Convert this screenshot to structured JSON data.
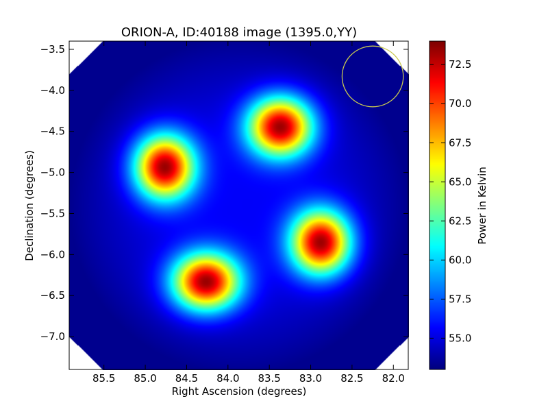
{
  "chart_data": {
    "type": "heatmap",
    "title": "ORION-A, ID:40188 image (1395.0,YY)",
    "xlabel": "Right Ascension (degrees)",
    "ylabel": "Declination (degrees)",
    "xlim": [
      85.92,
      81.82
    ],
    "ylim": [
      -7.4,
      -3.4
    ],
    "x_inverted": true,
    "x_ticks": [
      85.5,
      85.0,
      84.5,
      84.0,
      83.5,
      83.0,
      82.5,
      82.0
    ],
    "x_tick_labels": [
      "85.5",
      "85.0",
      "84.5",
      "84.0",
      "83.5",
      "83.0",
      "82.5",
      "82.0"
    ],
    "y_ticks": [
      -3.5,
      -4.0,
      -4.5,
      -5.0,
      -5.5,
      -6.0,
      -6.5,
      -7.0
    ],
    "y_tick_labels": [
      "−3.5",
      "−4.0",
      "−4.5",
      "−5.0",
      "−5.5",
      "−6.0",
      "−6.5",
      "−7.0"
    ],
    "colormap": "jet",
    "colorbar": {
      "label": "Power in Kelvin",
      "min": 53.0,
      "max": 74.0,
      "ticks": [
        55.0,
        57.5,
        60.0,
        62.5,
        65.0,
        67.5,
        70.0,
        72.5
      ],
      "tick_labels": [
        "55.0",
        "57.5",
        "60.0",
        "62.5",
        "65.0",
        "67.5",
        "70.0",
        "72.5"
      ]
    },
    "background_level": 55.5,
    "sources": [
      {
        "ra": 84.77,
        "dec": -4.93,
        "peak": 74.0,
        "sigma_ra": 0.25,
        "sigma_dec": 0.27
      },
      {
        "ra": 83.37,
        "dec": -4.44,
        "peak": 74.0,
        "sigma_ra": 0.27,
        "sigma_dec": 0.25
      },
      {
        "ra": 82.88,
        "dec": -5.85,
        "peak": 74.0,
        "sigma_ra": 0.25,
        "sigma_dec": 0.27
      },
      {
        "ra": 84.27,
        "dec": -6.33,
        "peak": 74.0,
        "sigma_ra": 0.28,
        "sigma_dec": 0.24
      }
    ],
    "beam": {
      "ra": 82.25,
      "dec": -3.83,
      "radius_deg": 0.37,
      "color": "#c8c850"
    },
    "grid": false
  }
}
